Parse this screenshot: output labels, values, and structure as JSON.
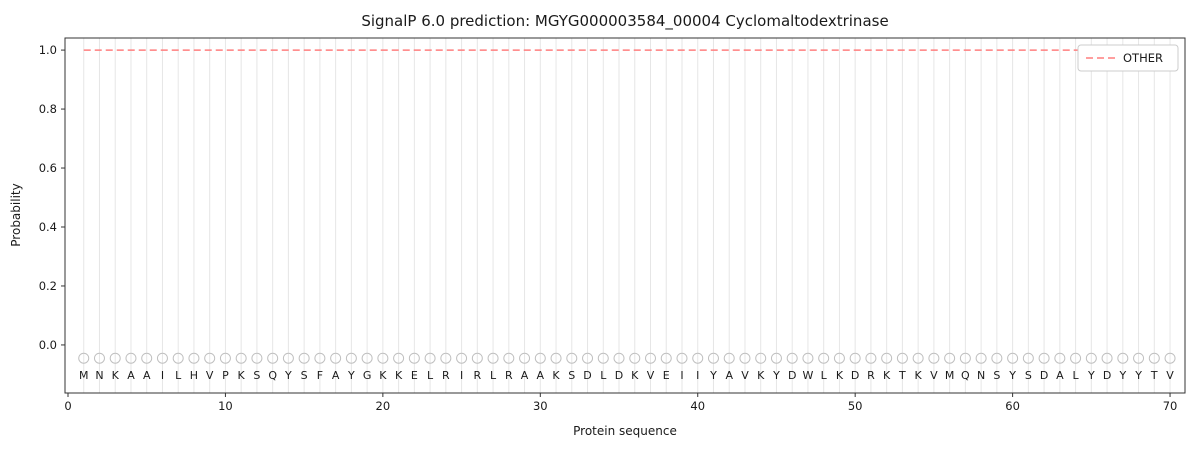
{
  "chart_data": {
    "type": "line",
    "title": "SignalP 6.0 prediction: MGYG000003584_00004 Cyclomaltodextrinase",
    "xlabel": "Protein sequence",
    "ylabel": "Probability",
    "xlim": [
      -0.19,
      70.95
    ],
    "ylim": [
      -0.163,
      1.041
    ],
    "xticks": [
      0,
      10,
      20,
      30,
      40,
      50,
      60,
      70
    ],
    "yticks": [
      0.0,
      0.2,
      0.4,
      0.6,
      0.8,
      1.0
    ],
    "grid": {
      "vertical_line_at_each_residue": true,
      "color": "#e6e6e6"
    },
    "series": [
      {
        "name": "OTHER",
        "type": "constant-line",
        "y": 1.0,
        "x_start": 1,
        "x_end": 70,
        "color": "#ff7f7f",
        "linestyle": "dashed"
      }
    ],
    "legend": {
      "position": "upper right",
      "entries": [
        {
          "label": "OTHER",
          "color": "#ff7f7f",
          "linestyle": "dashed"
        }
      ]
    },
    "sequence_start_position": 1,
    "sequence": [
      "M",
      "N",
      "K",
      "A",
      "A",
      "I",
      "L",
      "H",
      "V",
      "P",
      "K",
      "S",
      "Q",
      "Y",
      "S",
      "F",
      "A",
      "Y",
      "G",
      "K",
      "K",
      "E",
      "L",
      "R",
      "I",
      "R",
      "L",
      "R",
      "A",
      "A",
      "K",
      "S",
      "D",
      "L",
      "D",
      "K",
      "V",
      "E",
      "I",
      "I",
      "Y",
      "A",
      "V",
      "K",
      "Y",
      "D",
      "W",
      "L",
      "K",
      "D",
      "R",
      "K",
      "T",
      "K",
      "V",
      "M",
      "Q",
      "N",
      "S",
      "Y",
      "S",
      "D",
      "A",
      "L",
      "Y",
      "D",
      "Y",
      "Y",
      "T",
      "V"
    ],
    "residue_markers": {
      "shape": "open-circle",
      "y": -0.045,
      "radius_px": 5,
      "color": "#c0c0c0"
    },
    "residue_letter_y": -0.105,
    "colors": {
      "spine": "#333333",
      "tick_text": "#1a1a1a",
      "letter_text": "#1a1a1a",
      "background": "#ffffff"
    }
  }
}
